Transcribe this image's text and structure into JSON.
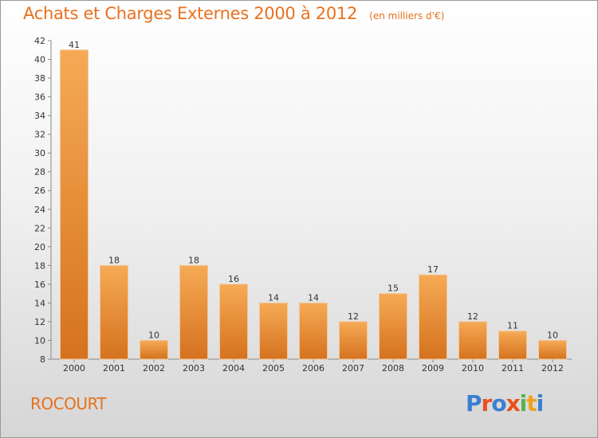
{
  "title": "Achats et Charges Externes 2000 à 2012",
  "subtitle": "(en milliers d'€)",
  "commune": "ROCOURT",
  "logo": {
    "text": "Proxiti",
    "letters": [
      "P",
      "r",
      "o",
      "x",
      "i",
      "t",
      "i"
    ],
    "colors": [
      "#3a7fd0",
      "#e94f1e",
      "#3a7fd0",
      "#e94f1e",
      "#56b44a",
      "#f0a020",
      "#3a7fd0"
    ]
  },
  "colors": {
    "title": "#e8711d",
    "bar_light": "#f6aa55",
    "bar_dark": "#d5721f"
  },
  "chart_data": {
    "type": "bar",
    "categories": [
      "2000",
      "2001",
      "2002",
      "2003",
      "2004",
      "2005",
      "2006",
      "2007",
      "2008",
      "2009",
      "2010",
      "2011",
      "2012"
    ],
    "values": [
      41,
      18,
      10,
      18,
      16,
      14,
      14,
      12,
      15,
      17,
      12,
      11,
      10
    ],
    "data_labels": [
      "41",
      "18",
      "10",
      "18",
      "16",
      "14",
      "14",
      "12",
      "15",
      "17",
      "12",
      "11",
      "10"
    ],
    "ylim": [
      8,
      42
    ],
    "yticks": [
      8,
      10,
      12,
      14,
      16,
      18,
      20,
      22,
      24,
      26,
      28,
      30,
      32,
      34,
      36,
      38,
      40,
      42
    ],
    "grid": false,
    "legend": "none"
  }
}
